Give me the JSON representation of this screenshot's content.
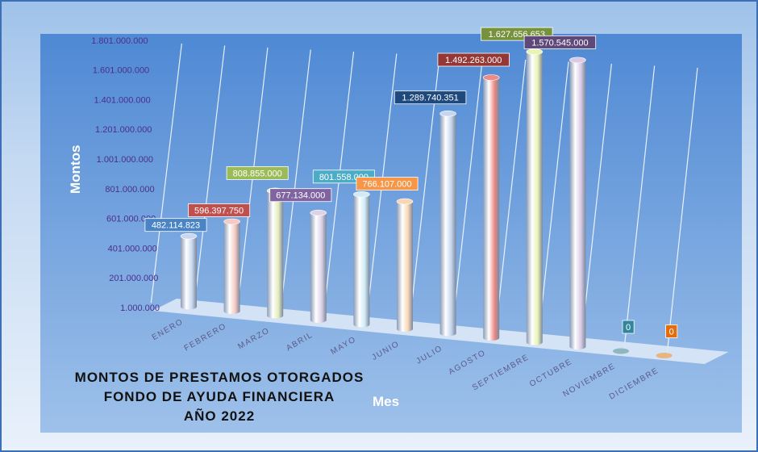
{
  "chart_data": {
    "type": "bar",
    "style": "3d-cylinder",
    "title": [
      "MONTOS  DE  PRESTAMOS  OTORGADOS",
      "FONDO  DE  AYUDA  FINANCIERA",
      "AÑO   2022"
    ],
    "xlabel": "Mes",
    "ylabel": "Montos",
    "ylim": [
      1000000,
      1801000000
    ],
    "yticks": [
      "1.000.000",
      "201.000.000",
      "401.000.000",
      "601.000.000",
      "801.000.000",
      "1.001.000.000",
      "1.201.000.000",
      "1.401.000.000",
      "1.601.000.000",
      "1.801.000.000"
    ],
    "categories": [
      "ENERO",
      "FEBRERO",
      "MARZO",
      "ABRIL",
      "MAYO",
      "JUNIO",
      "JULIO",
      "AGOSTO",
      "SEPTIEMBRE",
      "OCTUBRE",
      "NOVIEMBRE",
      "DICIEMBRE"
    ],
    "values": [
      482114823,
      596397750,
      808855000,
      677134000,
      801558000,
      766107000,
      1289740351,
      1492263000,
      1627656653,
      1570545000,
      0,
      0
    ],
    "data_labels": [
      "482.114.823",
      "596.397.750",
      "808.855.000",
      "677.134.000",
      "801.558.000",
      "766.107.000",
      "1.289.740.351",
      "1.492.263.000",
      "1.627.656.653",
      "1.570.545.000",
      "0",
      "0"
    ],
    "colors": [
      "#c9d8ee",
      "#f6c9c2",
      "#e5ecbc",
      "#ddd2e8",
      "#d0ebf6",
      "#f8d6b5",
      "#c5d6ee",
      "#ee8b86",
      "#e9f3b4",
      "#d9cbe6",
      "#8fb7bf",
      "#e8b47f"
    ],
    "label_colors": [
      "#4a84c4",
      "#c0504d",
      "#9bbb59",
      "#8064a2",
      "#4bacc6",
      "#f79646",
      "#1f497d",
      "#953735",
      "#76923c",
      "#5f497a",
      "#31859c",
      "#e46c0a"
    ],
    "grid": true
  }
}
